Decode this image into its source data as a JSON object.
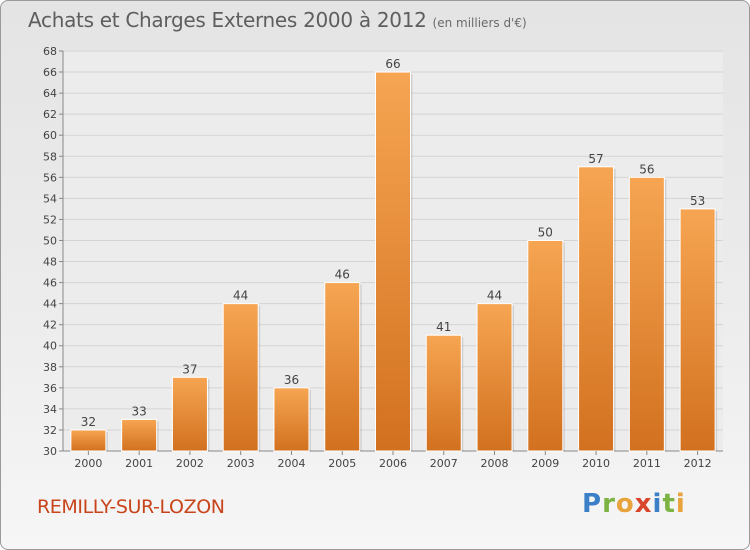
{
  "header": {
    "title": "Achats et Charges Externes 2000 à 2012",
    "subtitle": "(en milliers d'€)"
  },
  "footer": {
    "town": "REMILLY-SUR-LOZON",
    "logo_letters": [
      "P",
      "r",
      "o",
      "x",
      "i",
      "t",
      "i"
    ],
    "logo_colors": [
      "#3a7fc7",
      "#7cb342",
      "#e8a33d",
      "#d9452b",
      "#3a7fc7",
      "#7cb342",
      "#e8a33d"
    ]
  },
  "colors": {
    "bar_top": "#f6a552",
    "bar_bottom": "#d2711f",
    "grid": "#d4d4d4",
    "axis_text": "#444444"
  },
  "chart_data": {
    "type": "bar",
    "title": "Achats et Charges Externes 2000 à 2012",
    "subtitle": "(en milliers d'€)",
    "xlabel": "",
    "ylabel": "",
    "categories": [
      "2000",
      "2001",
      "2002",
      "2003",
      "2004",
      "2005",
      "2006",
      "2007",
      "2008",
      "2009",
      "2010",
      "2011",
      "2012"
    ],
    "values": [
      32,
      33,
      37,
      44,
      36,
      46,
      66,
      41,
      44,
      50,
      57,
      56,
      53
    ],
    "data_labels": [
      "32",
      "33",
      "37",
      "44",
      "36",
      "46",
      "66",
      "41",
      "44",
      "50",
      "57",
      "56",
      "53"
    ],
    "ylim": [
      30,
      68
    ],
    "ytick_step": 2,
    "yticks": [
      "30",
      "32",
      "34",
      "36",
      "38",
      "40",
      "42",
      "44",
      "46",
      "48",
      "50",
      "52",
      "54",
      "56",
      "58",
      "60",
      "62",
      "64",
      "66",
      "68"
    ],
    "grid": true,
    "legend": "none"
  }
}
